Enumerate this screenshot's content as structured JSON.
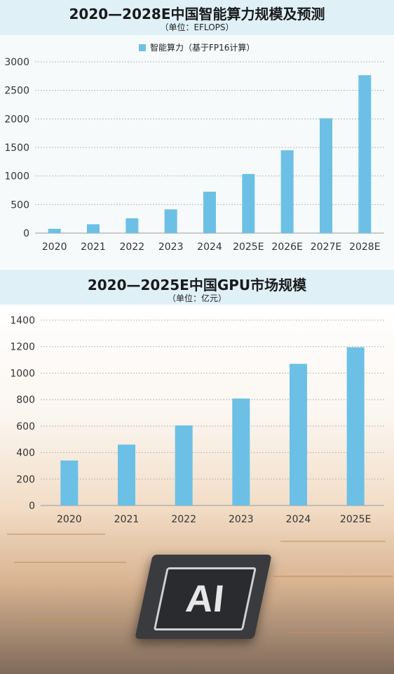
{
  "chart_data": [
    {
      "type": "bar",
      "title": "2020—2028E中国智能算力规模及预测",
      "subtitle": "（单位：EFLOPS）",
      "legend": "智能算力（基于FP16计算）",
      "legend_position": "top-center",
      "categories": [
        "2020",
        "2021",
        "2022",
        "2023",
        "2024",
        "2025E",
        "2026E",
        "2027E",
        "2028E"
      ],
      "series": [
        {
          "name": "智能算力（基于FP16计算）",
          "values": [
            75,
            155,
            260,
            415,
            725,
            1035,
            1450,
            2010,
            2765
          ]
        }
      ],
      "yticks": [
        0,
        500,
        1000,
        1500,
        2000,
        2500,
        3000
      ],
      "ylim": [
        0,
        3000
      ],
      "grid": true,
      "color": "#6cc0e5"
    },
    {
      "type": "bar",
      "title": "2020—2025E中国GPU市场规模",
      "subtitle": "（单位：亿元）",
      "categories": [
        "2020",
        "2021",
        "2022",
        "2023",
        "2024",
        "2025E"
      ],
      "values": [
        340,
        460,
        605,
        808,
        1070,
        1195
      ],
      "yticks": [
        0,
        200,
        400,
        600,
        800,
        1000,
        1200,
        1400
      ],
      "ylim": [
        0,
        1400
      ],
      "grid": true,
      "color": "#6cc0e5"
    }
  ],
  "illustration": {
    "chip_label": "AI"
  }
}
